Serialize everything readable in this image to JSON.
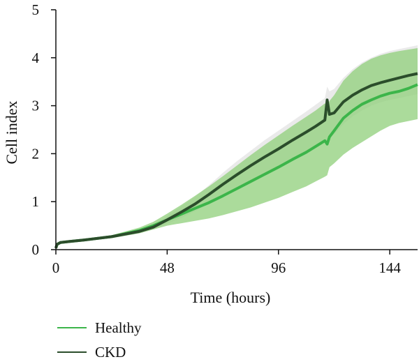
{
  "chart_data": {
    "type": "line",
    "title": "",
    "xlabel": "Time (hours)",
    "ylabel": "Cell index",
    "xlim": [
      0,
      156
    ],
    "ylim": [
      0,
      5
    ],
    "x_ticks": [
      0,
      48,
      96,
      144
    ],
    "y_ticks": [
      0,
      1,
      2,
      3,
      4,
      5
    ],
    "grid": false,
    "legend": "bottom-left",
    "series": [
      {
        "name": "Healthy",
        "color": "#3cb54a",
        "band_color": "#8fcf7a",
        "x": [
          0,
          0.5,
          2,
          6,
          12,
          24,
          36,
          42,
          48,
          54,
          60,
          66,
          72,
          78,
          84,
          90,
          96,
          102,
          108,
          112,
          116,
          117,
          118,
          120,
          124,
          128,
          132,
          136,
          140,
          144,
          148,
          152,
          156
        ],
        "y": [
          0.03,
          0.11,
          0.15,
          0.17,
          0.2,
          0.27,
          0.4,
          0.5,
          0.62,
          0.74,
          0.86,
          0.98,
          1.12,
          1.27,
          1.42,
          1.57,
          1.72,
          1.88,
          2.03,
          2.15,
          2.27,
          2.2,
          2.35,
          2.48,
          2.74,
          2.9,
          3.03,
          3.12,
          3.2,
          3.26,
          3.3,
          3.36,
          3.44
        ],
        "lower": [
          0.02,
          0.09,
          0.13,
          0.15,
          0.18,
          0.24,
          0.34,
          0.42,
          0.5,
          0.55,
          0.6,
          0.65,
          0.72,
          0.8,
          0.88,
          0.98,
          1.08,
          1.2,
          1.32,
          1.42,
          1.52,
          1.55,
          1.72,
          1.8,
          1.98,
          2.12,
          2.24,
          2.36,
          2.48,
          2.58,
          2.64,
          2.68,
          2.72
        ],
        "upper": [
          0.04,
          0.13,
          0.17,
          0.19,
          0.22,
          0.3,
          0.46,
          0.58,
          0.75,
          0.93,
          1.12,
          1.32,
          1.53,
          1.75,
          1.97,
          2.18,
          2.38,
          2.58,
          2.77,
          2.9,
          3.05,
          3.0,
          3.1,
          3.22,
          3.52,
          3.72,
          3.87,
          3.98,
          4.05,
          4.1,
          4.14,
          4.17,
          4.2
        ]
      },
      {
        "name": "CKD",
        "color": "#2b4d2b",
        "band_color": "#e6e6e6",
        "x": [
          0,
          0.5,
          2,
          6,
          12,
          24,
          36,
          42,
          48,
          54,
          60,
          66,
          72,
          78,
          84,
          90,
          96,
          102,
          108,
          112,
          116,
          117,
          118,
          120,
          124,
          128,
          132,
          136,
          140,
          144,
          148,
          152,
          156
        ],
        "y": [
          0.03,
          0.11,
          0.15,
          0.17,
          0.2,
          0.27,
          0.38,
          0.47,
          0.62,
          0.78,
          0.95,
          1.15,
          1.36,
          1.56,
          1.75,
          1.93,
          2.1,
          2.28,
          2.45,
          2.57,
          2.7,
          3.12,
          2.82,
          2.85,
          3.08,
          3.22,
          3.33,
          3.42,
          3.48,
          3.53,
          3.58,
          3.63,
          3.67
        ],
        "lower": [
          0.02,
          0.09,
          0.13,
          0.15,
          0.18,
          0.24,
          0.34,
          0.42,
          0.54,
          0.66,
          0.8,
          0.96,
          1.12,
          1.28,
          1.44,
          1.58,
          1.72,
          1.87,
          2.02,
          2.12,
          2.24,
          2.3,
          2.35,
          2.4,
          2.62,
          2.78,
          2.9,
          3.0,
          3.07,
          3.12,
          3.16,
          3.2,
          3.24
        ],
        "upper": [
          0.04,
          0.13,
          0.17,
          0.19,
          0.22,
          0.3,
          0.42,
          0.52,
          0.7,
          0.9,
          1.1,
          1.34,
          1.6,
          1.84,
          2.06,
          2.28,
          2.48,
          2.68,
          2.88,
          3.02,
          3.16,
          3.4,
          3.3,
          3.35,
          3.58,
          3.76,
          3.9,
          4.0,
          4.08,
          4.14,
          4.18,
          4.22,
          4.26
        ]
      }
    ]
  }
}
